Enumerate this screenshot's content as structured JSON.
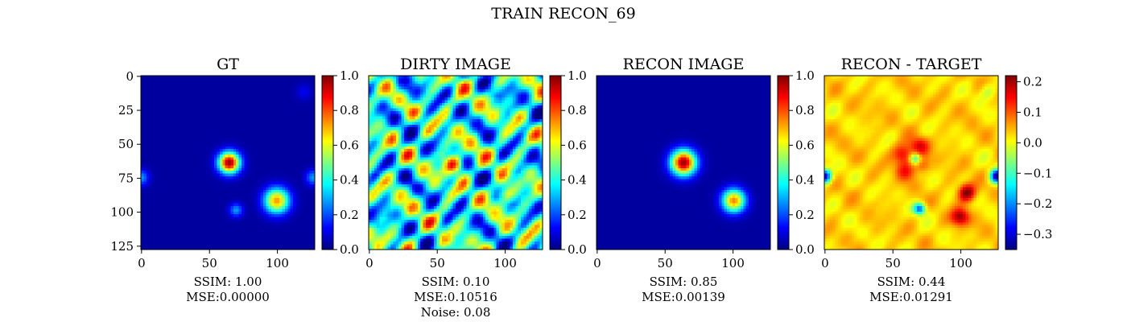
{
  "figure_title": "TRAIN RECON_69",
  "colors": {
    "jet_stops": [
      "#00007f",
      "#0000ff",
      "#007fff",
      "#00ffff",
      "#7fff7f",
      "#ffff00",
      "#ff7f00",
      "#ff0000",
      "#7f0000"
    ],
    "axis": "#000000",
    "background": "#ffffff"
  },
  "chart_data": [
    {
      "type": "heatmap",
      "title": "GT",
      "xlim": [
        0,
        127
      ],
      "ylim": [
        127,
        0
      ],
      "x_ticks": [
        0,
        50,
        100
      ],
      "y_ticks": [
        0,
        25,
        50,
        75,
        100,
        125
      ],
      "show_y_ticks": true,
      "base_value": 0.03,
      "blobs": [
        {
          "x": 65,
          "y": 64,
          "sigma": 5.5,
          "amp": 0.95
        },
        {
          "x": 100,
          "y": 92,
          "sigma": 6.5,
          "amp": 0.7
        },
        {
          "x": 70,
          "y": 99,
          "sigma": 3.5,
          "amp": 0.25
        },
        {
          "x": 0,
          "y": 75,
          "sigma": 4,
          "amp": 0.25
        },
        {
          "x": 127,
          "y": 75,
          "sigma": 4,
          "amp": 0.25
        },
        {
          "x": 120,
          "y": 12,
          "sigma": 4,
          "amp": 0.08
        }
      ],
      "colorbar": {
        "min": 0.0,
        "max": 1.0,
        "ticks": [
          "0.0",
          "0.2",
          "0.4",
          "0.6",
          "0.8",
          "1.0"
        ],
        "tick_values": [
          0.0,
          0.2,
          0.4,
          0.6,
          0.8,
          1.0
        ]
      },
      "caption": [
        "SSIM: 1.00",
        "MSE:0.00000"
      ]
    },
    {
      "type": "heatmap",
      "title": "DIRTY IMAGE",
      "xlim": [
        0,
        127
      ],
      "ylim": [
        127,
        0
      ],
      "x_ticks": [
        0,
        50,
        100
      ],
      "y_ticks": [
        0,
        25,
        50,
        75,
        100,
        125
      ],
      "show_y_ticks": false,
      "base_value": 0.4,
      "noise_amp": 0.22,
      "blobs": [
        {
          "x": 62,
          "y": 65,
          "sigma": 5,
          "amp": 0.5
        },
        {
          "x": 100,
          "y": 88,
          "sigma": 5,
          "amp": 0.35
        }
      ],
      "colorbar": {
        "min": 0.0,
        "max": 1.0,
        "ticks": [
          "0.0",
          "0.2",
          "0.4",
          "0.6",
          "0.8",
          "1.0"
        ],
        "tick_values": [
          0.0,
          0.2,
          0.4,
          0.6,
          0.8,
          1.0
        ]
      },
      "caption": [
        "SSIM: 0.10",
        "MSE:0.10516",
        "Noise: 0.08"
      ]
    },
    {
      "type": "heatmap",
      "title": "RECON IMAGE",
      "xlim": [
        0,
        127
      ],
      "ylim": [
        127,
        0
      ],
      "x_ticks": [
        0,
        50,
        100
      ],
      "y_ticks": [
        0,
        25,
        50,
        75,
        100,
        125
      ],
      "show_y_ticks": false,
      "base_value": 0.03,
      "blobs": [
        {
          "x": 64,
          "y": 64,
          "sigma": 6.5,
          "amp": 0.95
        },
        {
          "x": 101,
          "y": 92,
          "sigma": 6,
          "amp": 0.72
        }
      ],
      "colorbar": {
        "min": 0.0,
        "max": 1.0,
        "ticks": [
          "0.0",
          "0.2",
          "0.4",
          "0.6",
          "0.8",
          "1.0"
        ],
        "tick_values": [
          0.0,
          0.2,
          0.4,
          0.6,
          0.8,
          1.0
        ]
      },
      "caption": [
        "SSIM: 0.85",
        "MSE:0.00139"
      ]
    },
    {
      "type": "heatmap",
      "title": "RECON - TARGET",
      "xlim": [
        0,
        127
      ],
      "ylim": [
        127,
        0
      ],
      "x_ticks": [
        0,
        50,
        100
      ],
      "y_ticks": [
        0,
        25,
        50,
        75,
        100,
        125
      ],
      "show_y_ticks": false,
      "base_value": 0.03,
      "noise_amp": 0.02,
      "blobs": [
        {
          "x": 58,
          "y": 58,
          "sigma": 5,
          "amp": 0.14
        },
        {
          "x": 70,
          "y": 52,
          "sigma": 5,
          "amp": 0.12
        },
        {
          "x": 60,
          "y": 70,
          "sigma": 5,
          "amp": 0.1
        },
        {
          "x": 72,
          "y": 66,
          "sigma": 4,
          "amp": 0.08
        },
        {
          "x": 67,
          "y": 61,
          "sigma": 3,
          "amp": -0.17
        },
        {
          "x": 105,
          "y": 86,
          "sigma": 4.5,
          "amp": 0.2
        },
        {
          "x": 100,
          "y": 104,
          "sigma": 4.5,
          "amp": 0.18
        },
        {
          "x": 70,
          "y": 98,
          "sigma": 3,
          "amp": -0.25
        },
        {
          "x": 0,
          "y": 74,
          "sigma": 3.5,
          "amp": -0.35
        },
        {
          "x": 127,
          "y": 74,
          "sigma": 3.5,
          "amp": -0.35
        },
        {
          "x": 120,
          "y": 12,
          "sigma": 4,
          "amp": -0.07
        }
      ],
      "colorbar": {
        "min": -0.35,
        "max": 0.22,
        "ticks": [
          "−0.3",
          "−0.2",
          "−0.1",
          "0.0",
          "0.1",
          "0.2"
        ],
        "tick_values": [
          -0.3,
          -0.2,
          -0.1,
          0.0,
          0.1,
          0.2
        ]
      },
      "caption": [
        "SSIM: 0.44",
        "MSE:0.01291"
      ]
    }
  ]
}
